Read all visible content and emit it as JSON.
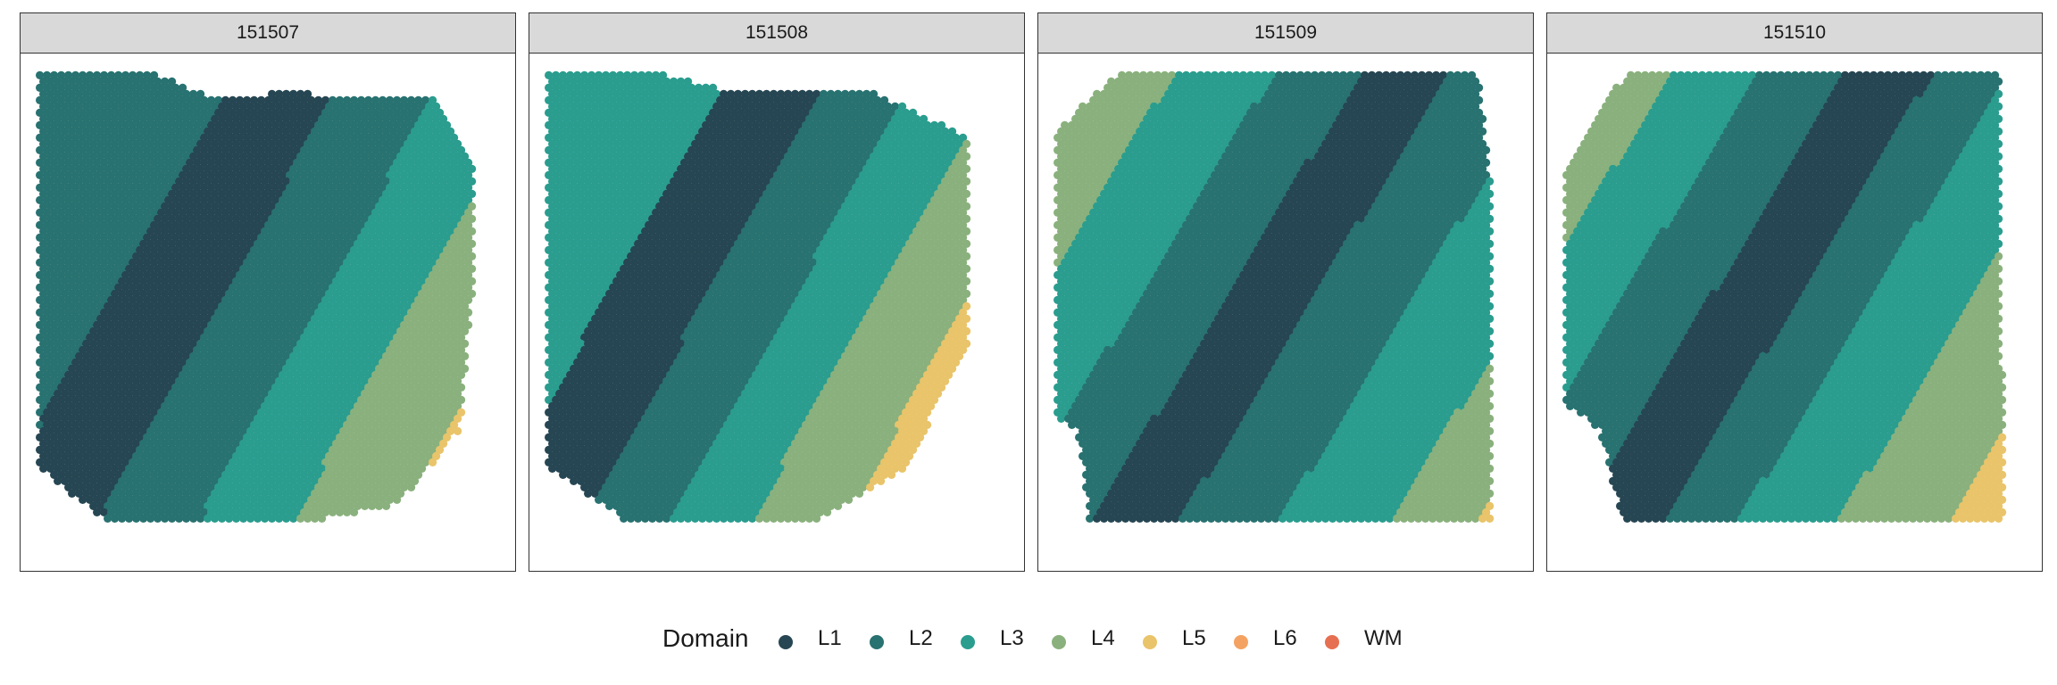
{
  "chart_data": {
    "type": "scatter",
    "chart_kind": "spatial hexagonal spot map, faceted by sample",
    "facets": [
      "151507",
      "151508",
      "151509",
      "151510"
    ],
    "legend": {
      "title": "Domain",
      "position": "bottom",
      "items": [
        {
          "label": "L1",
          "color": "#264653"
        },
        {
          "label": "L2",
          "color": "#287271"
        },
        {
          "label": "L3",
          "color": "#2a9d8f"
        },
        {
          "label": "L4",
          "color": "#8ab17d"
        },
        {
          "label": "L5",
          "color": "#e9c46a"
        },
        {
          "label": "L6",
          "color": "#f4a261"
        },
        {
          "label": "WM",
          "color": "#e76f51"
        }
      ]
    },
    "axes_visible": false,
    "grid": false
  }
}
